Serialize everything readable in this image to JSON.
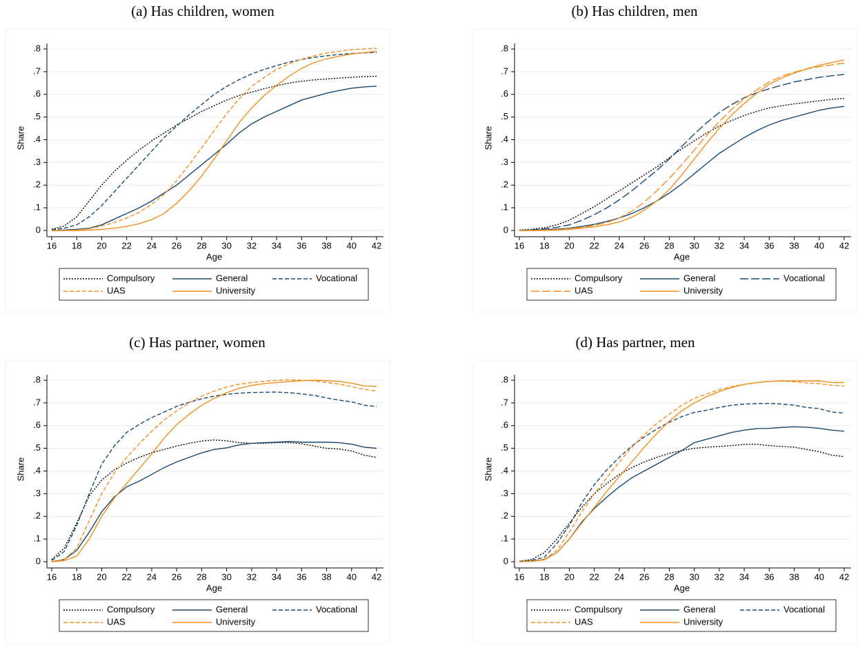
{
  "chart_data": [
    {
      "type": "line",
      "title": "(a) Has children, women",
      "xlabel": "Age",
      "ylabel": "Share",
      "x": [
        16,
        17,
        18,
        19,
        20,
        21,
        22,
        23,
        24,
        25,
        26,
        27,
        28,
        29,
        30,
        31,
        32,
        33,
        34,
        35,
        36,
        37,
        38,
        39,
        40,
        41,
        42
      ],
      "xlim": [
        16,
        42
      ],
      "ylim": [
        0,
        0.8
      ],
      "xticks": [
        16,
        18,
        20,
        22,
        24,
        26,
        28,
        30,
        32,
        34,
        36,
        38,
        40,
        42
      ],
      "yticks": [
        0,
        {
          "value": 0.1,
          "label": ".1"
        },
        {
          "value": 0.2,
          "label": ".2"
        },
        {
          "value": 0.3,
          "label": ".3"
        },
        {
          "value": 0.4,
          "label": ".4"
        },
        {
          "value": 0.5,
          "label": ".5"
        },
        {
          "value": 0.6,
          "label": ".6"
        },
        {
          "value": 0.7,
          "label": ".7"
        },
        {
          "value": 0.8,
          "label": ".8"
        }
      ],
      "grid": true,
      "legend": "bottom",
      "series": [
        {
          "name": "Compulsory",
          "color": "#000000",
          "linestyle": "dotted",
          "values": [
            0.005,
            0.02,
            0.06,
            0.13,
            0.2,
            0.26,
            0.31,
            0.355,
            0.395,
            0.43,
            0.465,
            0.495,
            0.525,
            0.55,
            0.575,
            0.595,
            0.61,
            0.625,
            0.638,
            0.65,
            0.658,
            0.664,
            0.668,
            0.672,
            0.675,
            0.678,
            0.68
          ]
        },
        {
          "name": "General",
          "color": "#1a476f",
          "linestyle": "solid",
          "values": [
            0,
            0.002,
            0.005,
            0.01,
            0.025,
            0.05,
            0.075,
            0.1,
            0.13,
            0.165,
            0.2,
            0.245,
            0.29,
            0.335,
            0.38,
            0.43,
            0.47,
            0.5,
            0.525,
            0.55,
            0.575,
            0.59,
            0.605,
            0.617,
            0.627,
            0.633,
            0.636
          ]
        },
        {
          "name": "Vocational",
          "color": "#1a476f",
          "linestyle": "dashed",
          "values": [
            0.003,
            0.01,
            0.025,
            0.06,
            0.11,
            0.17,
            0.23,
            0.29,
            0.35,
            0.41,
            0.46,
            0.51,
            0.555,
            0.6,
            0.635,
            0.665,
            0.69,
            0.71,
            0.727,
            0.742,
            0.754,
            0.763,
            0.77,
            0.776,
            0.78,
            0.783,
            0.785
          ]
        },
        {
          "name": "UAS",
          "color": "#f28e1c",
          "linestyle": "dashed",
          "values": [
            0,
            0,
            0.002,
            0.008,
            0.02,
            0.035,
            0.055,
            0.08,
            0.115,
            0.16,
            0.22,
            0.29,
            0.365,
            0.44,
            0.515,
            0.58,
            0.635,
            0.675,
            0.71,
            0.735,
            0.755,
            0.77,
            0.782,
            0.79,
            0.797,
            0.8,
            0.803
          ]
        },
        {
          "name": "University",
          "color": "#f28e1c",
          "linestyle": "solid",
          "values": [
            0,
            0,
            0,
            0.002,
            0.005,
            0.01,
            0.018,
            0.03,
            0.048,
            0.075,
            0.12,
            0.175,
            0.24,
            0.315,
            0.395,
            0.475,
            0.54,
            0.595,
            0.64,
            0.68,
            0.715,
            0.74,
            0.757,
            0.768,
            0.778,
            0.784,
            0.79
          ]
        }
      ]
    },
    {
      "type": "line",
      "title": "(b) Has children, men",
      "xlabel": "Age",
      "ylabel": "Share",
      "x": [
        16,
        17,
        18,
        19,
        20,
        21,
        22,
        23,
        24,
        25,
        26,
        27,
        28,
        29,
        30,
        31,
        32,
        33,
        34,
        35,
        36,
        37,
        38,
        39,
        40,
        41,
        42
      ],
      "xlim": [
        16,
        42
      ],
      "ylim": [
        0,
        0.8
      ],
      "xticks": [
        16,
        18,
        20,
        22,
        24,
        26,
        28,
        30,
        32,
        34,
        36,
        38,
        40,
        42
      ],
      "yticks": [
        0,
        {
          "value": 0.1,
          "label": ".1"
        },
        {
          "value": 0.2,
          "label": ".2"
        },
        {
          "value": 0.3,
          "label": ".3"
        },
        {
          "value": 0.4,
          "label": ".4"
        },
        {
          "value": 0.5,
          "label": ".5"
        },
        {
          "value": 0.6,
          "label": ".6"
        },
        {
          "value": 0.7,
          "label": ".7"
        },
        {
          "value": 0.8,
          "label": ".8"
        }
      ],
      "grid": true,
      "legend": "bottom",
      "series": [
        {
          "name": "Compulsory",
          "color": "#000000",
          "linestyle": "dotted",
          "values": [
            0.002,
            0.005,
            0.012,
            0.025,
            0.045,
            0.075,
            0.105,
            0.14,
            0.175,
            0.21,
            0.245,
            0.28,
            0.32,
            0.36,
            0.395,
            0.43,
            0.46,
            0.485,
            0.507,
            0.525,
            0.54,
            0.55,
            0.558,
            0.565,
            0.572,
            0.578,
            0.582
          ]
        },
        {
          "name": "General",
          "color": "#1a476f",
          "linestyle": "solid",
          "values": [
            0,
            0.001,
            0.003,
            0.006,
            0.01,
            0.018,
            0.027,
            0.04,
            0.055,
            0.075,
            0.1,
            0.13,
            0.165,
            0.205,
            0.25,
            0.295,
            0.34,
            0.375,
            0.41,
            0.44,
            0.465,
            0.485,
            0.5,
            0.515,
            0.53,
            0.54,
            0.547
          ]
        },
        {
          "name": "Vocational",
          "color": "#1a476f",
          "linestyle": "longdash",
          "values": [
            0.001,
            0.003,
            0.007,
            0.014,
            0.025,
            0.045,
            0.07,
            0.1,
            0.135,
            0.175,
            0.22,
            0.265,
            0.315,
            0.37,
            0.425,
            0.475,
            0.52,
            0.555,
            0.585,
            0.607,
            0.625,
            0.64,
            0.655,
            0.665,
            0.675,
            0.682,
            0.688
          ]
        },
        {
          "name": "UAS",
          "color": "#f28e1c",
          "linestyle": "longdash",
          "values": [
            0,
            0,
            0.002,
            0.004,
            0.008,
            0.014,
            0.022,
            0.035,
            0.055,
            0.085,
            0.125,
            0.175,
            0.23,
            0.29,
            0.355,
            0.42,
            0.48,
            0.535,
            0.58,
            0.62,
            0.655,
            0.68,
            0.698,
            0.712,
            0.722,
            0.73,
            0.738
          ]
        },
        {
          "name": "University",
          "color": "#f28e1c",
          "linestyle": "solid",
          "values": [
            0,
            0,
            0,
            0.002,
            0.005,
            0.01,
            0.016,
            0.025,
            0.038,
            0.058,
            0.09,
            0.13,
            0.18,
            0.245,
            0.315,
            0.385,
            0.45,
            0.51,
            0.56,
            0.605,
            0.645,
            0.672,
            0.694,
            0.712,
            0.728,
            0.74,
            0.752
          ]
        }
      ]
    },
    {
      "type": "line",
      "title": "(c) Has partner, women",
      "xlabel": "Age",
      "ylabel": "Share",
      "x": [
        16,
        17,
        18,
        19,
        20,
        21,
        22,
        23,
        24,
        25,
        26,
        27,
        28,
        29,
        30,
        31,
        32,
        33,
        34,
        35,
        36,
        37,
        38,
        39,
        40,
        41,
        42
      ],
      "xlim": [
        16,
        42
      ],
      "ylim": [
        0,
        0.8
      ],
      "xticks": [
        16,
        18,
        20,
        22,
        24,
        26,
        28,
        30,
        32,
        34,
        36,
        38,
        40,
        42
      ],
      "yticks": [
        0,
        {
          "value": 0.1,
          "label": ".1"
        },
        {
          "value": 0.2,
          "label": ".2"
        },
        {
          "value": 0.3,
          "label": ".3"
        },
        {
          "value": 0.4,
          "label": ".4"
        },
        {
          "value": 0.5,
          "label": ".5"
        },
        {
          "value": 0.6,
          "label": ".6"
        },
        {
          "value": 0.7,
          "label": ".7"
        },
        {
          "value": 0.8,
          "label": ".8"
        }
      ],
      "grid": true,
      "legend": "bottom",
      "series": [
        {
          "name": "Compulsory",
          "color": "#000000",
          "linestyle": "dotted",
          "values": [
            0.01,
            0.06,
            0.17,
            0.29,
            0.36,
            0.405,
            0.435,
            0.46,
            0.48,
            0.495,
            0.51,
            0.522,
            0.532,
            0.537,
            0.533,
            0.525,
            0.522,
            0.522,
            0.525,
            0.525,
            0.52,
            0.51,
            0.5,
            0.497,
            0.488,
            0.47,
            0.46
          ]
        },
        {
          "name": "General",
          "color": "#1a476f",
          "linestyle": "solid",
          "values": [
            0,
            0.01,
            0.05,
            0.13,
            0.22,
            0.285,
            0.33,
            0.355,
            0.385,
            0.415,
            0.44,
            0.46,
            0.48,
            0.495,
            0.502,
            0.515,
            0.522,
            0.525,
            0.527,
            0.53,
            0.527,
            0.527,
            0.527,
            0.525,
            0.518,
            0.505,
            0.5
          ]
        },
        {
          "name": "Vocational",
          "color": "#1a476f",
          "linestyle": "dashed",
          "values": [
            0.005,
            0.045,
            0.16,
            0.3,
            0.43,
            0.51,
            0.57,
            0.605,
            0.635,
            0.66,
            0.685,
            0.703,
            0.718,
            0.73,
            0.738,
            0.743,
            0.746,
            0.747,
            0.748,
            0.745,
            0.74,
            0.733,
            0.722,
            0.712,
            0.705,
            0.69,
            0.684
          ]
        },
        {
          "name": "UAS",
          "color": "#f28e1c",
          "linestyle": "dashed",
          "values": [
            0,
            0.01,
            0.06,
            0.18,
            0.3,
            0.39,
            0.46,
            0.52,
            0.575,
            0.625,
            0.665,
            0.7,
            0.73,
            0.752,
            0.77,
            0.782,
            0.79,
            0.795,
            0.8,
            0.802,
            0.8,
            0.797,
            0.79,
            0.783,
            0.772,
            0.76,
            0.752
          ]
        },
        {
          "name": "University",
          "color": "#f28e1c",
          "linestyle": "solid",
          "values": [
            0,
            0.005,
            0.025,
            0.1,
            0.2,
            0.28,
            0.345,
            0.41,
            0.475,
            0.545,
            0.605,
            0.65,
            0.69,
            0.72,
            0.745,
            0.765,
            0.777,
            0.785,
            0.79,
            0.795,
            0.798,
            0.8,
            0.798,
            0.795,
            0.787,
            0.775,
            0.773
          ]
        }
      ]
    },
    {
      "type": "line",
      "title": "(d) Has partner, men",
      "xlabel": "Age",
      "ylabel": "Share",
      "x": [
        16,
        17,
        18,
        19,
        20,
        21,
        22,
        23,
        24,
        25,
        26,
        27,
        28,
        29,
        30,
        31,
        32,
        33,
        34,
        35,
        36,
        37,
        38,
        39,
        40,
        41,
        42
      ],
      "xlim": [
        16,
        42
      ],
      "ylim": [
        0,
        0.8
      ],
      "xticks": [
        16,
        18,
        20,
        22,
        24,
        26,
        28,
        30,
        32,
        34,
        36,
        38,
        40,
        42
      ],
      "yticks": [
        0,
        {
          "value": 0.1,
          "label": ".1"
        },
        {
          "value": 0.2,
          "label": ".2"
        },
        {
          "value": 0.3,
          "label": ".3"
        },
        {
          "value": 0.4,
          "label": ".4"
        },
        {
          "value": 0.5,
          "label": ".5"
        },
        {
          "value": 0.6,
          "label": ".6"
        },
        {
          "value": 0.7,
          "label": ".7"
        },
        {
          "value": 0.8,
          "label": ".8"
        }
      ],
      "grid": true,
      "legend": "bottom",
      "series": [
        {
          "name": "Compulsory",
          "color": "#000000",
          "linestyle": "dotted",
          "values": [
            0.002,
            0.01,
            0.04,
            0.1,
            0.17,
            0.24,
            0.3,
            0.345,
            0.385,
            0.415,
            0.44,
            0.46,
            0.478,
            0.49,
            0.5,
            0.505,
            0.508,
            0.512,
            0.517,
            0.518,
            0.512,
            0.508,
            0.505,
            0.495,
            0.485,
            0.47,
            0.463
          ]
        },
        {
          "name": "General",
          "color": "#1a476f",
          "linestyle": "solid",
          "values": [
            0,
            0.003,
            0.01,
            0.04,
            0.1,
            0.175,
            0.235,
            0.285,
            0.33,
            0.37,
            0.4,
            0.43,
            0.46,
            0.49,
            0.525,
            0.54,
            0.555,
            0.57,
            0.58,
            0.587,
            0.588,
            0.592,
            0.595,
            0.593,
            0.588,
            0.58,
            0.575
          ]
        },
        {
          "name": "Vocational",
          "color": "#1a476f",
          "linestyle": "dashed",
          "values": [
            0.002,
            0.006,
            0.02,
            0.08,
            0.16,
            0.26,
            0.34,
            0.405,
            0.46,
            0.51,
            0.55,
            0.585,
            0.615,
            0.64,
            0.658,
            0.668,
            0.68,
            0.69,
            0.695,
            0.697,
            0.698,
            0.695,
            0.69,
            0.68,
            0.675,
            0.66,
            0.655
          ]
        },
        {
          "name": "UAS",
          "color": "#f28e1c",
          "linestyle": "dashed",
          "values": [
            0,
            0.003,
            0.01,
            0.05,
            0.13,
            0.22,
            0.3,
            0.37,
            0.44,
            0.505,
            0.56,
            0.61,
            0.65,
            0.69,
            0.72,
            0.74,
            0.758,
            0.772,
            0.782,
            0.79,
            0.795,
            0.797,
            0.793,
            0.788,
            0.785,
            0.778,
            0.775
          ]
        },
        {
          "name": "University",
          "color": "#f28e1c",
          "linestyle": "solid",
          "values": [
            0,
            0.002,
            0.008,
            0.04,
            0.1,
            0.17,
            0.24,
            0.31,
            0.375,
            0.44,
            0.505,
            0.565,
            0.62,
            0.665,
            0.7,
            0.728,
            0.75,
            0.768,
            0.782,
            0.79,
            0.795,
            0.797,
            0.797,
            0.797,
            0.797,
            0.79,
            0.79
          ]
        }
      ]
    }
  ]
}
